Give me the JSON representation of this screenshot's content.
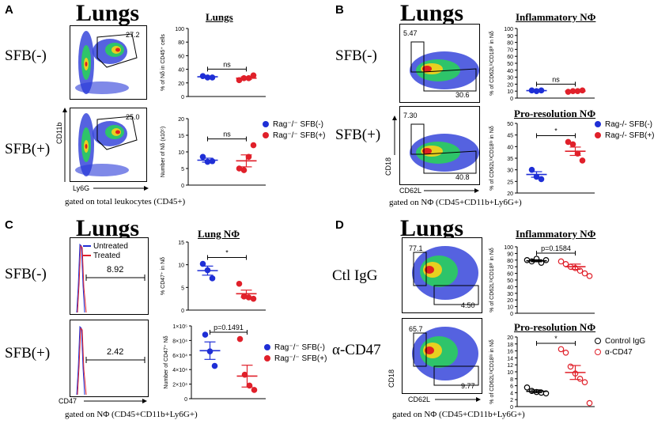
{
  "panels": {
    "A": {
      "letter": "A",
      "title": "Lungs",
      "rows": [
        {
          "label": "SFB(-)",
          "gate_value": "27.2"
        },
        {
          "label": "SFB(+)",
          "gate_value": "25.0"
        }
      ],
      "x_axis": "Ly6G",
      "y_axis": "CD11b",
      "gated_on": "gated on total leukocytes (CD45+)"
    },
    "B": {
      "letter": "B",
      "title": "Lungs",
      "rows": [
        {
          "label": "SFB(-)",
          "gate_values": [
            "5.47",
            "30.6"
          ]
        },
        {
          "label": "SFB(+)",
          "gate_values": [
            "7.30",
            "40.8"
          ]
        }
      ],
      "x_axis": "CD62L",
      "y_axis": "CD18",
      "gated_on": "gated on NΦ (CD45+CD11b+Ly6G+)"
    },
    "C": {
      "letter": "C",
      "title": "Lungs",
      "rows": [
        {
          "label": "SFB(-)",
          "gate_value": "8.92"
        },
        {
          "label": "SFB(+)",
          "gate_value": "2.42"
        }
      ],
      "x_axis": "CD47",
      "histogram_legend": [
        "Untreated",
        "Treated"
      ],
      "gated_on": "gated on NΦ (CD45+CD11b+Ly6G+)"
    },
    "D": {
      "letter": "D",
      "title": "Lungs",
      "rows": [
        {
          "label": "Ctl IgG",
          "gate_values": [
            "77.1",
            "4.50"
          ]
        },
        {
          "label": "α-CD47",
          "gate_values": [
            "65.7",
            "9.77"
          ]
        }
      ],
      "x_axis": "CD62L",
      "y_axis": "CD18",
      "gated_on": "gated on NΦ (CD45+CD11b+Ly6G+)"
    }
  },
  "legends": {
    "rag": [
      {
        "label": "Rag⁻/⁻ SFB(-)",
        "color": "#1f2fd6"
      },
      {
        "label": "Rag⁻/⁻ SFB(+)",
        "color": "#e0202a"
      }
    ],
    "ragB": [
      {
        "label": "Rag-/- SFB(-)",
        "color": "#1f2fd6"
      },
      {
        "label": "Rag-/- SFB(+)",
        "color": "#e0202a"
      }
    ],
    "cd47": [
      {
        "label": "Control IgG",
        "color": "#000000"
      },
      {
        "label": "α-CD47",
        "color": "#e0202a"
      }
    ]
  },
  "colors": {
    "blue": "#1f2fd6",
    "red": "#e0202a",
    "black": "#000000"
  },
  "chart_data": [
    {
      "id": "A1",
      "type": "scatter",
      "title": "Lungs",
      "ylabel": "% of Nδ in CD45⁺ cells",
      "ylim": [
        0,
        100
      ],
      "yticks": [
        0,
        20,
        40,
        60,
        80,
        100
      ],
      "ytick_labels": [
        "0",
        "20",
        "40",
        "60",
        "80",
        "100"
      ],
      "series": [
        {
          "name": "SFB(-)",
          "color": "#1f2fd6",
          "filled": true,
          "values": [
            30,
            28,
            28
          ],
          "mean": 29,
          "err": 1
        },
        {
          "name": "SFB(+)",
          "color": "#e0202a",
          "filled": true,
          "values": [
            24,
            27,
            27,
            31
          ],
          "mean": 27,
          "err": 2
        }
      ],
      "annotation": "ns"
    },
    {
      "id": "A2",
      "type": "scatter",
      "title": "",
      "ylabel": "Number of Nδ (x10⁵)",
      "ylim": [
        0,
        20
      ],
      "yticks": [
        0,
        5,
        10,
        15,
        20
      ],
      "ytick_labels": [
        "0",
        "5",
        "10",
        "15",
        "20"
      ],
      "series": [
        {
          "name": "SFB(-)",
          "color": "#1f2fd6",
          "filled": true,
          "values": [
            8.5,
            7.0,
            7.2
          ],
          "mean": 7.5,
          "err": 0.6
        },
        {
          "name": "SFB(+)",
          "color": "#e0202a",
          "filled": true,
          "values": [
            5.0,
            4.5,
            8.5,
            12.0
          ],
          "mean": 7.3,
          "err": 1.8
        }
      ],
      "annotation": "ns"
    },
    {
      "id": "B1",
      "type": "scatter",
      "title": "Inflammatory NΦ",
      "ylabel": "% of CD62LˡᵒCD18ʰⁱ in Nδ",
      "ylim": [
        0,
        100
      ],
      "yticks": [
        0,
        10,
        20,
        30,
        40,
        50,
        60,
        70,
        80,
        90,
        100
      ],
      "ytick_labels": [
        "0",
        "10",
        "20",
        "30",
        "40",
        "50",
        "60",
        "70",
        "80",
        "90",
        "100"
      ],
      "series": [
        {
          "name": "SFB(-)",
          "color": "#1f2fd6",
          "filled": true,
          "values": [
            11,
            10,
            11
          ],
          "mean": 10.7,
          "err": 0.3
        },
        {
          "name": "SFB(+)",
          "color": "#e0202a",
          "filled": true,
          "values": [
            9,
            10,
            10,
            11
          ],
          "mean": 10,
          "err": 0.4
        }
      ],
      "annotation": "ns"
    },
    {
      "id": "B2",
      "type": "scatter",
      "title": "Pro-resolution NΦ",
      "ylabel": "% of CD62LˡᵒCD18ˡᵒ in Nδ",
      "ylim": [
        20,
        50
      ],
      "yticks": [
        20,
        25,
        30,
        35,
        40,
        45,
        50
      ],
      "ytick_labels": [
        "20",
        "25",
        "30",
        "35",
        "40",
        "45",
        "50"
      ],
      "series": [
        {
          "name": "SFB(-)",
          "color": "#1f2fd6",
          "filled": true,
          "values": [
            30,
            27,
            26
          ],
          "mean": 28,
          "err": 1.2
        },
        {
          "name": "SFB(+)",
          "color": "#e0202a",
          "filled": true,
          "values": [
            42,
            41,
            37,
            34
          ],
          "mean": 38,
          "err": 1.8
        }
      ],
      "annotation": "*"
    },
    {
      "id": "C1",
      "type": "scatter",
      "title": "Lung NΦ",
      "ylabel": "% CD47⁺ in Nδ",
      "ylim": [
        0,
        15
      ],
      "yticks": [
        0,
        5,
        10,
        15
      ],
      "ytick_labels": [
        "0",
        "5",
        "10",
        "15"
      ],
      "series": [
        {
          "name": "SFB(-)",
          "color": "#1f2fd6",
          "filled": true,
          "values": [
            10.2,
            8.8,
            7.0
          ],
          "mean": 8.7,
          "err": 1.0
        },
        {
          "name": "SFB(+)",
          "color": "#e0202a",
          "filled": true,
          "values": [
            5.8,
            3.0,
            2.8,
            2.5
          ],
          "mean": 3.6,
          "err": 0.8
        }
      ],
      "annotation": "*"
    },
    {
      "id": "C2",
      "type": "scatter",
      "title": "",
      "ylabel": "Number of CD47⁺ Nδ",
      "ylim": [
        0,
        100000
      ],
      "yticks": [
        0,
        20000,
        40000,
        60000,
        80000,
        100000
      ],
      "ytick_labels": [
        "0",
        "2×10⁴",
        "4×10⁴",
        "6×10⁴",
        "8×10⁴",
        "1×10⁵"
      ],
      "series": [
        {
          "name": "SFB(-)",
          "color": "#1f2fd6",
          "filled": true,
          "values": [
            88000,
            65000,
            45000
          ],
          "mean": 66000,
          "err": 12000
        },
        {
          "name": "SFB(+)",
          "color": "#e0202a",
          "filled": true,
          "values": [
            82000,
            33000,
            18000,
            12000
          ],
          "mean": 31000,
          "err": 15000
        }
      ],
      "annotation": "p=0.1491"
    },
    {
      "id": "D1",
      "type": "scatter",
      "title": "Inflammatory NΦ",
      "ylabel": "% of CD62LˡᵒCD18ʰⁱ in Nδ",
      "ylim": [
        0,
        100
      ],
      "yticks": [
        0,
        10,
        20,
        30,
        40,
        50,
        60,
        70,
        80,
        90,
        100
      ],
      "ytick_labels": [
        "0",
        "10",
        "20",
        "30",
        "40",
        "50",
        "60",
        "70",
        "80",
        "90",
        "100"
      ],
      "series": [
        {
          "name": "Control IgG",
          "color": "#000000",
          "filled": false,
          "values": [
            80,
            78,
            82,
            76,
            80
          ],
          "mean": 79,
          "err": 1.5
        },
        {
          "name": "α-CD47",
          "color": "#e0202a",
          "filled": false,
          "values": [
            78,
            74,
            70,
            68,
            64,
            60,
            56
          ],
          "mean": 70,
          "err": 4
        }
      ],
      "annotation": "p=0.1584"
    },
    {
      "id": "D2",
      "type": "scatter",
      "title": "Pro-resolution NΦ",
      "ylabel": "% of CD62LˡᵒCD18ˡᵒ in Nδ",
      "ylim": [
        0,
        20
      ],
      "yticks": [
        0,
        2,
        4,
        6,
        8,
        10,
        12,
        14,
        16,
        18,
        20
      ],
      "ytick_labels": [
        "0",
        "2",
        "4",
        "6",
        "8",
        "10",
        "12",
        "14",
        "16",
        "18",
        "20"
      ],
      "series": [
        {
          "name": "Control IgG",
          "color": "#000000",
          "filled": false,
          "values": [
            5.5,
            4.5,
            4.2,
            4.0,
            3.8
          ],
          "mean": 4.4,
          "err": 0.4
        },
        {
          "name": "α-CD47",
          "color": "#e0202a",
          "filled": false,
          "values": [
            16.5,
            15.5,
            11.5,
            9.5,
            8.0,
            7.0,
            1.0
          ],
          "mean": 9.8,
          "err": 2.0
        }
      ],
      "annotation": "*"
    }
  ]
}
